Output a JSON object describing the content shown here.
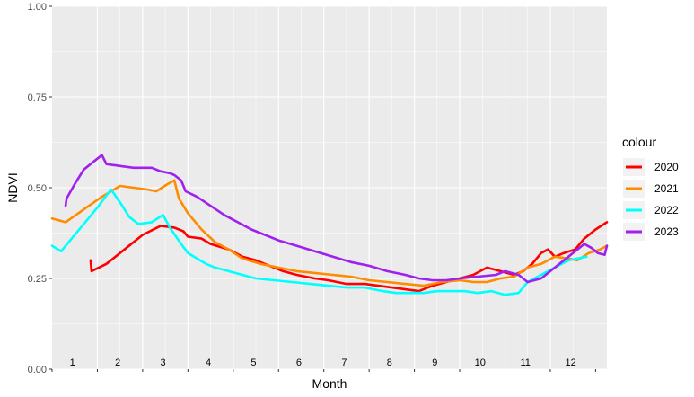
{
  "chart_data": {
    "type": "line",
    "xlabel": "Month",
    "ylabel": "NDVI",
    "ylim": [
      0,
      1
    ],
    "y_ticks": [
      "0.00",
      "0.25",
      "0.50",
      "0.75",
      "1.00"
    ],
    "x_month_labels": [
      "1",
      "2",
      "3",
      "4",
      "5",
      "6",
      "7",
      "8",
      "9",
      "10",
      "11",
      "12"
    ],
    "grid": true,
    "legend_title": "colour",
    "legend_position": "right",
    "series": [
      {
        "name": "2020",
        "color": "#ff0000",
        "points": [
          [
            1.85,
            0.3
          ],
          [
            1.87,
            0.27
          ],
          [
            2.2,
            0.29
          ],
          [
            2.6,
            0.33
          ],
          [
            3.0,
            0.37
          ],
          [
            3.4,
            0.395
          ],
          [
            3.7,
            0.39
          ],
          [
            3.9,
            0.38
          ],
          [
            4.0,
            0.365
          ],
          [
            4.3,
            0.36
          ],
          [
            4.5,
            0.345
          ],
          [
            4.9,
            0.33
          ],
          [
            5.2,
            0.31
          ],
          [
            5.5,
            0.3
          ],
          [
            5.8,
            0.285
          ],
          [
            6.1,
            0.27
          ],
          [
            6.4,
            0.26
          ],
          [
            6.8,
            0.25
          ],
          [
            7.1,
            0.245
          ],
          [
            7.5,
            0.235
          ],
          [
            7.9,
            0.235
          ],
          [
            8.2,
            0.23
          ],
          [
            8.5,
            0.225
          ],
          [
            8.8,
            0.22
          ],
          [
            9.1,
            0.215
          ],
          [
            9.4,
            0.23
          ],
          [
            9.7,
            0.24
          ],
          [
            10.0,
            0.25
          ],
          [
            10.3,
            0.26
          ],
          [
            10.6,
            0.28
          ],
          [
            10.9,
            0.27
          ],
          [
            11.2,
            0.26
          ],
          [
            11.4,
            0.27
          ],
          [
            11.6,
            0.29
          ],
          [
            11.8,
            0.32
          ],
          [
            11.95,
            0.33
          ],
          [
            12.1,
            0.31
          ],
          [
            12.3,
            0.32
          ],
          [
            12.55,
            0.33
          ],
          [
            12.75,
            0.36
          ],
          [
            13.0,
            0.385
          ],
          [
            13.25,
            0.405
          ]
        ]
      },
      {
        "name": "2021",
        "color": "#ff8c00",
        "points": [
          [
            1.0,
            0.415
          ],
          [
            1.3,
            0.405
          ],
          [
            1.7,
            0.44
          ],
          [
            2.1,
            0.475
          ],
          [
            2.5,
            0.505
          ],
          [
            2.8,
            0.5
          ],
          [
            3.1,
            0.495
          ],
          [
            3.3,
            0.49
          ],
          [
            3.55,
            0.51
          ],
          [
            3.7,
            0.52
          ],
          [
            3.8,
            0.47
          ],
          [
            4.0,
            0.43
          ],
          [
            4.3,
            0.385
          ],
          [
            4.6,
            0.35
          ],
          [
            4.9,
            0.33
          ],
          [
            5.2,
            0.305
          ],
          [
            5.6,
            0.29
          ],
          [
            6.0,
            0.28
          ],
          [
            6.4,
            0.27
          ],
          [
            6.8,
            0.265
          ],
          [
            7.2,
            0.26
          ],
          [
            7.6,
            0.255
          ],
          [
            8.0,
            0.245
          ],
          [
            8.4,
            0.24
          ],
          [
            8.8,
            0.235
          ],
          [
            9.2,
            0.23
          ],
          [
            9.6,
            0.24
          ],
          [
            10.0,
            0.245
          ],
          [
            10.3,
            0.24
          ],
          [
            10.6,
            0.24
          ],
          [
            10.9,
            0.25
          ],
          [
            11.2,
            0.255
          ],
          [
            11.5,
            0.28
          ],
          [
            11.8,
            0.29
          ],
          [
            12.1,
            0.31
          ],
          [
            12.4,
            0.305
          ],
          [
            12.6,
            0.3
          ],
          [
            12.85,
            0.32
          ],
          [
            13.1,
            0.33
          ],
          [
            13.25,
            0.34
          ]
        ]
      },
      {
        "name": "2022",
        "color": "#00ffff",
        "points": [
          [
            1.0,
            0.34
          ],
          [
            1.2,
            0.325
          ],
          [
            1.4,
            0.355
          ],
          [
            1.7,
            0.4
          ],
          [
            2.0,
            0.445
          ],
          [
            2.3,
            0.495
          ],
          [
            2.5,
            0.46
          ],
          [
            2.7,
            0.42
          ],
          [
            2.9,
            0.4
          ],
          [
            3.2,
            0.405
          ],
          [
            3.45,
            0.425
          ],
          [
            3.6,
            0.39
          ],
          [
            3.85,
            0.345
          ],
          [
            4.0,
            0.32
          ],
          [
            4.2,
            0.305
          ],
          [
            4.4,
            0.29
          ],
          [
            4.6,
            0.28
          ],
          [
            4.9,
            0.27
          ],
          [
            5.2,
            0.26
          ],
          [
            5.5,
            0.25
          ],
          [
            5.9,
            0.245
          ],
          [
            6.3,
            0.24
          ],
          [
            6.7,
            0.235
          ],
          [
            7.1,
            0.23
          ],
          [
            7.5,
            0.225
          ],
          [
            7.9,
            0.225
          ],
          [
            8.3,
            0.215
          ],
          [
            8.6,
            0.21
          ],
          [
            8.9,
            0.21
          ],
          [
            9.2,
            0.21
          ],
          [
            9.5,
            0.215
          ],
          [
            9.8,
            0.215
          ],
          [
            10.1,
            0.215
          ],
          [
            10.4,
            0.21
          ],
          [
            10.7,
            0.215
          ],
          [
            11.0,
            0.205
          ],
          [
            11.3,
            0.21
          ],
          [
            11.5,
            0.24
          ],
          [
            11.8,
            0.26
          ],
          [
            12.1,
            0.28
          ],
          [
            12.4,
            0.3
          ],
          [
            12.8,
            0.31
          ]
        ]
      },
      {
        "name": "2023",
        "color": "#a020f0",
        "points": [
          [
            1.3,
            0.45
          ],
          [
            1.32,
            0.47
          ],
          [
            1.5,
            0.51
          ],
          [
            1.7,
            0.55
          ],
          [
            1.95,
            0.575
          ],
          [
            2.1,
            0.59
          ],
          [
            2.2,
            0.565
          ],
          [
            2.5,
            0.56
          ],
          [
            2.8,
            0.555
          ],
          [
            3.0,
            0.555
          ],
          [
            3.2,
            0.555
          ],
          [
            3.4,
            0.545
          ],
          [
            3.6,
            0.54
          ],
          [
            3.7,
            0.535
          ],
          [
            3.85,
            0.52
          ],
          [
            3.95,
            0.49
          ],
          [
            4.2,
            0.475
          ],
          [
            4.5,
            0.45
          ],
          [
            4.8,
            0.425
          ],
          [
            5.1,
            0.405
          ],
          [
            5.4,
            0.385
          ],
          [
            5.7,
            0.37
          ],
          [
            6.0,
            0.355
          ],
          [
            6.4,
            0.34
          ],
          [
            6.8,
            0.325
          ],
          [
            7.2,
            0.31
          ],
          [
            7.6,
            0.295
          ],
          [
            8.0,
            0.285
          ],
          [
            8.4,
            0.27
          ],
          [
            8.8,
            0.26
          ],
          [
            9.1,
            0.25
          ],
          [
            9.4,
            0.245
          ],
          [
            9.7,
            0.245
          ],
          [
            10.0,
            0.25
          ],
          [
            10.4,
            0.255
          ],
          [
            10.8,
            0.26
          ],
          [
            11.0,
            0.27
          ],
          [
            11.3,
            0.26
          ],
          [
            11.5,
            0.24
          ],
          [
            11.8,
            0.25
          ],
          [
            12.1,
            0.28
          ],
          [
            12.4,
            0.31
          ],
          [
            12.6,
            0.33
          ],
          [
            12.75,
            0.345
          ],
          [
            12.9,
            0.335
          ],
          [
            13.05,
            0.32
          ],
          [
            13.2,
            0.315
          ],
          [
            13.25,
            0.34
          ]
        ]
      }
    ]
  }
}
